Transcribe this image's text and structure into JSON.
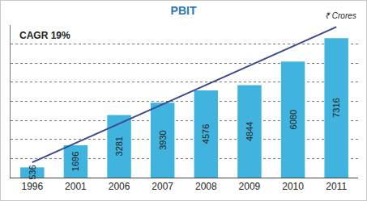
{
  "chart_data": {
    "type": "bar",
    "title": "PBIT",
    "annotations": [
      "CAGR 19%",
      "₹ Crores"
    ],
    "categories": [
      "1996",
      "2001",
      "2006",
      "2007",
      "2008",
      "2009",
      "2010",
      "2011"
    ],
    "series": [
      {
        "type": "bar",
        "color": "#40b4de",
        "values": [
          536,
          1696,
          3281,
          3930,
          4576,
          4844,
          6080,
          7316
        ]
      },
      {
        "type": "line",
        "color": "#3b4a8f",
        "values": [
          800,
          null,
          null,
          null,
          null,
          null,
          null,
          7900
        ]
      }
    ],
    "ylim": [
      0,
      8000
    ],
    "yticks": [
      0,
      1000,
      2000,
      3000,
      4000,
      5000,
      6000,
      7000,
      8000
    ],
    "grid": true,
    "data_labels": true,
    "tick_labels": "x"
  }
}
